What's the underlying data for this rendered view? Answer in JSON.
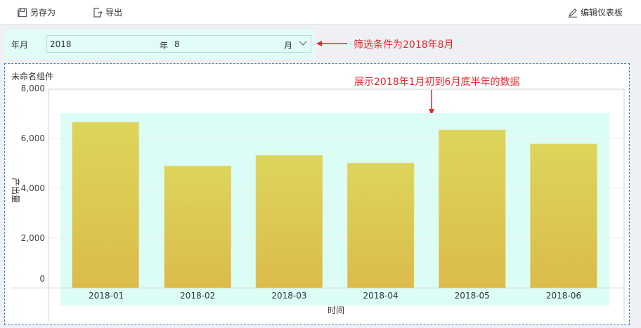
{
  "toolbar": {
    "save_as": "另存为",
    "export": "导出",
    "edit_dashboard": "编辑仪表板"
  },
  "filter": {
    "label": "年月",
    "year": "2018",
    "year_unit": "年",
    "month": "8",
    "month_unit": "月"
  },
  "annotations": {
    "filter_note": "筛选条件为2018年8月",
    "chart_note": "展示2018年1月初到6月底半年的数据"
  },
  "widget": {
    "title": "未命名组件"
  },
  "colors": {
    "bar_top": "#ddd55b",
    "bar_bottom": "#dbbb4b",
    "highlight": "#dcfdf6",
    "annotation": "#e8262b"
  },
  "chart_data": {
    "type": "bar",
    "categories": [
      "2018-01",
      "2018-02",
      "2018-03",
      "2018-04",
      "2018-05",
      "2018-06"
    ],
    "values": [
      6650,
      4900,
      5320,
      5010,
      6340,
      5780
    ],
    "xlabel": "时间",
    "ylabel": "产出量",
    "ylim": [
      0,
      8000
    ],
    "yticks": [
      "0",
      "2,000",
      "4,000",
      "6,000",
      "8,000"
    ],
    "grid": true
  }
}
